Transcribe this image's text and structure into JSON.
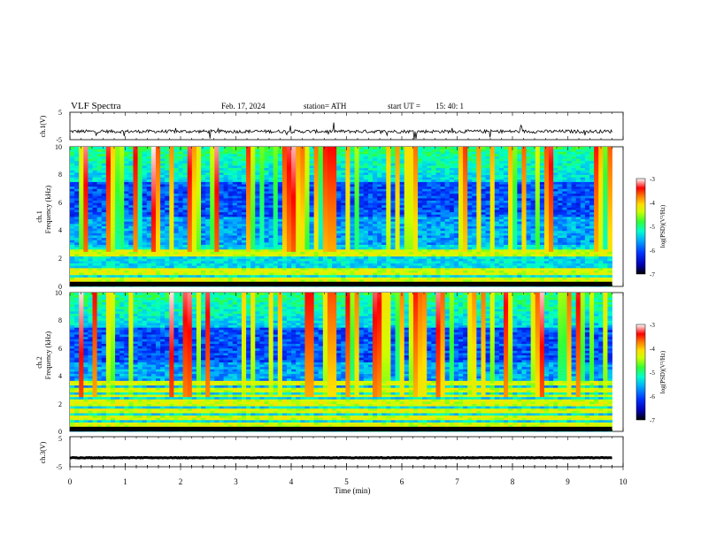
{
  "header": {
    "title": "VLF Spectra",
    "date": "Feb. 17, 2024",
    "station": "station= ATH",
    "start_label": "start UT =",
    "start_time": "15: 40: 1"
  },
  "chart_data": [
    {
      "type": "line",
      "id": "ch1_waveform",
      "ylabel": "ch.1(V)",
      "ylim": [
        -5,
        5
      ],
      "yticks": [
        "5",
        "-5"
      ],
      "xlim": [
        0,
        10
      ],
      "series": [
        {
          "baseline_value": -2.0,
          "noise_amplitude": 0.6
        }
      ]
    },
    {
      "type": "heatmap",
      "id": "ch1_spectrogram",
      "ylabel": "ch.1\nFrequency (kHz)",
      "ylabel_lines": [
        "ch.1",
        "Frequency (kHz)"
      ],
      "ylim": [
        0,
        10
      ],
      "yticks": [
        "0",
        "2",
        "4",
        "6",
        "8",
        "10"
      ],
      "xlim": [
        0,
        9.8
      ],
      "strong_bands_khz": [
        0.3,
        0.6,
        0.9,
        1.2,
        2.2,
        2.5
      ],
      "colorbar": {
        "label": "log(PSD)(V²/Hz)",
        "range": [
          -7,
          -3
        ],
        "ticks": [
          "-3",
          "-4",
          "-5",
          "-6",
          "-7"
        ]
      }
    },
    {
      "type": "heatmap",
      "id": "ch2_spectrogram",
      "ylabel": "ch.2\nFrequency (kHz)",
      "ylabel_lines": [
        "ch.2",
        "Frequency (kHz)"
      ],
      "ylim": [
        0,
        10
      ],
      "yticks": [
        "0",
        "2",
        "4",
        "6",
        "8",
        "10"
      ],
      "xlim": [
        0,
        9.8
      ],
      "strong_bands_khz": [
        0.3,
        0.6,
        1.0,
        1.5,
        2.0,
        2.2,
        2.6,
        3.0,
        3.5
      ],
      "colorbar": {
        "label": "log(PSD)(V²/Hz)",
        "range": [
          -7,
          -3
        ],
        "ticks": [
          "-3",
          "-4",
          "-5",
          "-6",
          "-7"
        ]
      }
    },
    {
      "type": "line",
      "id": "ch3_waveform",
      "ylabel": "ch.3(V)",
      "ylim": [
        -5,
        5
      ],
      "yticks": [
        "5",
        "-5"
      ],
      "xlim": [
        0,
        10
      ],
      "series": [
        {
          "baseline_value": -2.0,
          "noise_amplitude": 0.1
        }
      ]
    }
  ],
  "xaxis": {
    "label": "Time (min)",
    "ticks": [
      "0",
      "1",
      "2",
      "3",
      "4",
      "5",
      "6",
      "7",
      "8",
      "9",
      "10"
    ],
    "range": [
      0,
      10
    ]
  },
  "colormap": [
    "#000000",
    "#0000b4",
    "#0033ff",
    "#00aaff",
    "#00ffcc",
    "#33ff33",
    "#ccff00",
    "#ffdd00",
    "#ff7700",
    "#ff0000",
    "#ffffff"
  ]
}
